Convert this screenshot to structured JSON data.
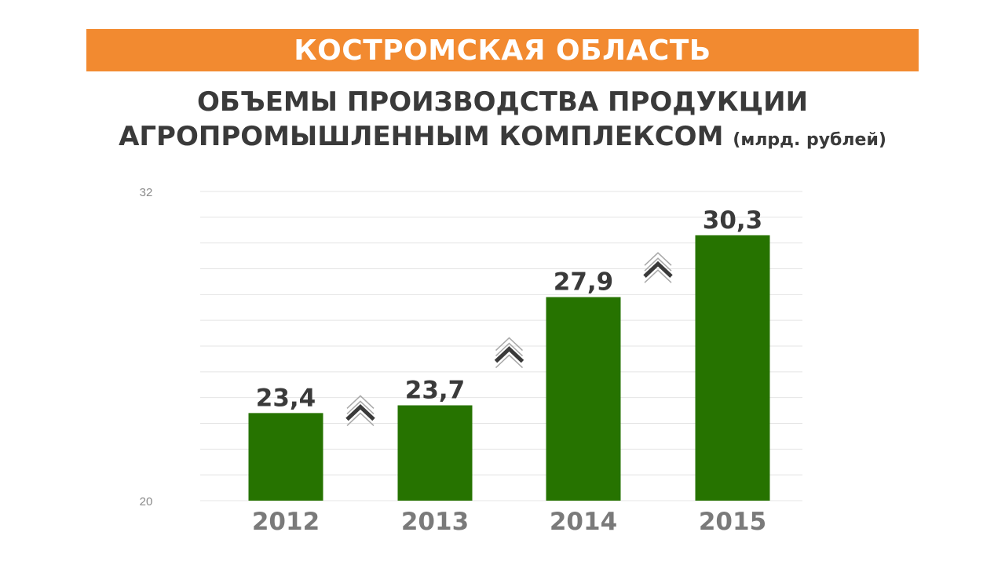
{
  "header": {
    "region": "КОСТРОМСКАЯ ОБЛАСТЬ",
    "title_line1": "ОБЪЕМЫ ПРОИЗВОДСТВА ПРОДУКЦИИ",
    "title_line2": "АГРОПРОМЫШЛЕННЫМ КОМПЛЕКСОМ",
    "unit": "(млрд. рублей)"
  },
  "colors": {
    "banner": "#f28a30",
    "bar": "#267300",
    "gridline": "#e4e4e4",
    "value_label": "#3a3a3a",
    "category_label": "#7a7a7a",
    "tick_label": "#8a8a8a",
    "arrow_dark": "#3a3a3a",
    "arrow_light": "#a8a8a8"
  },
  "chart_data": {
    "type": "bar",
    "categories": [
      "2012",
      "2013",
      "2014",
      "2015"
    ],
    "values": [
      23.4,
      23.7,
      27.9,
      30.3
    ],
    "value_labels": [
      "23,4",
      "23,7",
      "27,9",
      "30,3"
    ],
    "ylim": [
      20,
      32
    ],
    "yticks": [
      "20",
      "32"
    ],
    "grid": true,
    "grid_step": 1,
    "growth_arrows_between": [
      [
        0,
        1
      ],
      [
        1,
        2
      ],
      [
        2,
        3
      ]
    ],
    "arrow_icon": "double-chevron-up-icon"
  }
}
